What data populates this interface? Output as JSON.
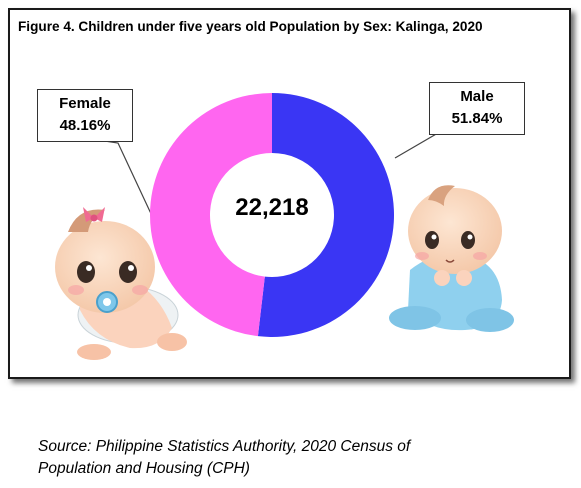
{
  "figure": {
    "title": "Figure 4. Children under five years old Population by Sex: Kalinga, 2020"
  },
  "chart_data": {
    "type": "pie",
    "title": "Figure 4. Children under five years old Population by Sex: Kalinga, 2020",
    "center_total": "22,218",
    "series": [
      {
        "name": "Male",
        "percent_label": "51.84%",
        "value": 51.84,
        "color": "#3a36f4"
      },
      {
        "name": "Female",
        "percent_label": "48.16%",
        "value": 48.16,
        "color": "#ff66f0"
      }
    ]
  },
  "source": {
    "line1": "Source: Philippine Statistics Authority, 2020 Census of",
    "line2": "Population and Housing (CPH)"
  }
}
